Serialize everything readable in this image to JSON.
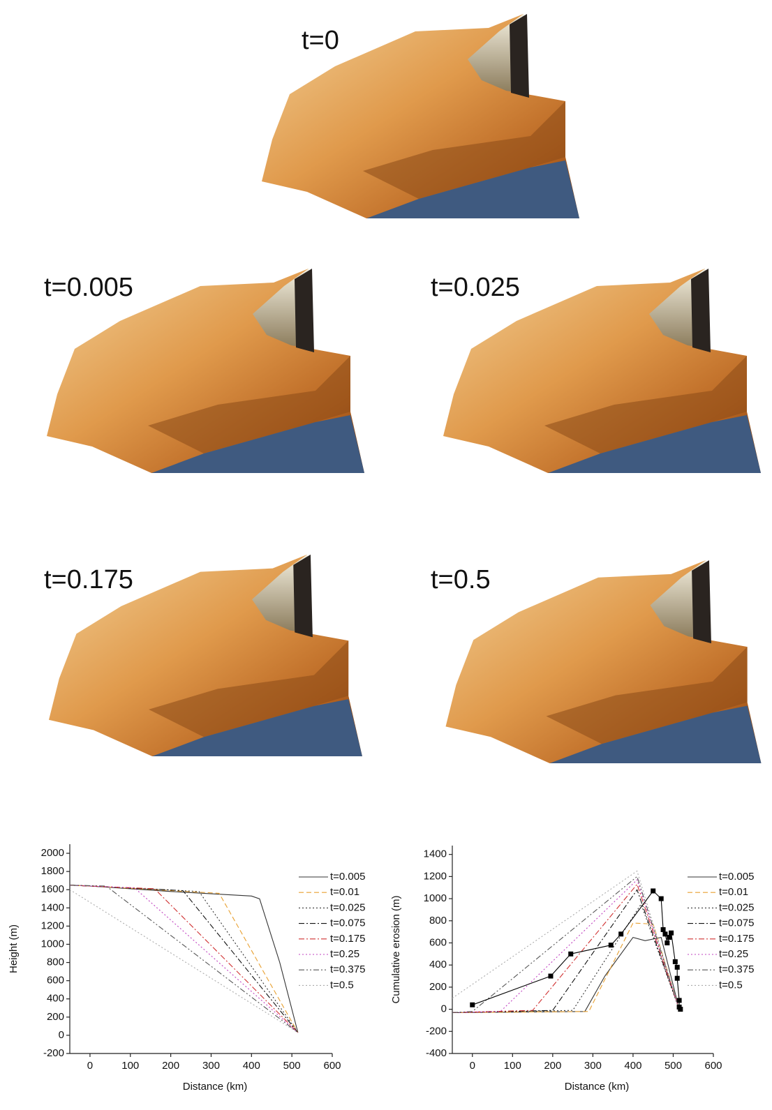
{
  "panels": [
    {
      "label": "t=0"
    },
    {
      "label": "t=0.005"
    },
    {
      "label": "t=0.025"
    },
    {
      "label": "t=0.175"
    },
    {
      "label": "t=0.5"
    }
  ],
  "chart_data": [
    {
      "type": "line",
      "xlabel": "Distance (km)",
      "ylabel": "Height (m)",
      "xlim": [
        -50,
        600
      ],
      "xticks": [
        0,
        100,
        200,
        300,
        400,
        500,
        600
      ],
      "ylim": [
        -200,
        2100
      ],
      "yticks": [
        -200,
        0,
        200,
        400,
        600,
        800,
        1000,
        1200,
        1400,
        1600,
        1800,
        2000
      ],
      "series": [
        {
          "name": "t=0.005",
          "color": "#333333",
          "dash": "none",
          "x": [
            -50,
            0,
            200,
            400,
            420,
            470,
            515
          ],
          "values": [
            1650,
            1640,
            1580,
            1530,
            1500,
            800,
            30
          ]
        },
        {
          "name": "t=0.01",
          "color": "#e8a030",
          "dash": "7 4",
          "x": [
            -50,
            0,
            320,
            515
          ],
          "values": [
            1650,
            1640,
            1560,
            30
          ]
        },
        {
          "name": "t=0.025",
          "color": "#333333",
          "dash": "2 3",
          "x": [
            -50,
            0,
            270,
            515
          ],
          "values": [
            1650,
            1640,
            1580,
            30
          ]
        },
        {
          "name": "t=0.075",
          "color": "#111111",
          "dash": "8 3 2 3",
          "x": [
            -50,
            0,
            230,
            515
          ],
          "values": [
            1650,
            1640,
            1590,
            30
          ]
        },
        {
          "name": "t=0.175",
          "color": "#d03030",
          "dash": "8 3 2 3",
          "x": [
            -50,
            0,
            160,
            515
          ],
          "values": [
            1650,
            1640,
            1610,
            30
          ]
        },
        {
          "name": "t=0.25",
          "color": "#c040c0",
          "dash": "2 3",
          "x": [
            -50,
            0,
            110,
            515
          ],
          "values": [
            1650,
            1640,
            1620,
            30
          ]
        },
        {
          "name": "t=0.375",
          "color": "#555555",
          "dash": "8 3 2 3 2 3",
          "x": [
            -50,
            40,
            515
          ],
          "values": [
            1650,
            1640,
            30
          ]
        },
        {
          "name": "t=0.5",
          "color": "#aaaaaa",
          "dash": "2 3",
          "x": [
            -50,
            515
          ],
          "values": [
            1600,
            30
          ]
        }
      ]
    },
    {
      "type": "line",
      "xlabel": "Distance (km)",
      "ylabel": "Cumulative erosion (m)",
      "xlim": [
        -50,
        600
      ],
      "xticks": [
        0,
        100,
        200,
        300,
        400,
        500,
        600
      ],
      "ylim": [
        -400,
        1480
      ],
      "yticks": [
        -400,
        -200,
        0,
        200,
        400,
        600,
        800,
        1000,
        1200,
        1400
      ],
      "series": [
        {
          "name": "t=0.005",
          "color": "#333333",
          "dash": "none",
          "x": [
            -50,
            280,
            330,
            400,
            430,
            470,
            515
          ],
          "values": [
            -30,
            -20,
            300,
            650,
            620,
            650,
            0
          ]
        },
        {
          "name": "t=0.01",
          "color": "#e8a030",
          "dash": "7 4",
          "x": [
            -50,
            290,
            400,
            450,
            515
          ],
          "values": [
            -30,
            -20,
            780,
            770,
            0
          ]
        },
        {
          "name": "t=0.025",
          "color": "#333333",
          "dash": "2 3",
          "x": [
            -50,
            250,
            420,
            515
          ],
          "values": [
            -30,
            -10,
            950,
            0
          ]
        },
        {
          "name": "t=0.075",
          "color": "#111111",
          "dash": "8 3 2 3",
          "x": [
            -50,
            200,
            410,
            515
          ],
          "values": [
            -30,
            -10,
            1080,
            0
          ]
        },
        {
          "name": "t=0.175",
          "color": "#d03030",
          "dash": "8 3 2 3",
          "x": [
            -50,
            150,
            410,
            515
          ],
          "values": [
            -30,
            -10,
            1130,
            0
          ]
        },
        {
          "name": "t=0.25",
          "color": "#c040c0",
          "dash": "2 3",
          "x": [
            -50,
            70,
            410,
            515
          ],
          "values": [
            -30,
            -20,
            1170,
            0
          ]
        },
        {
          "name": "t=0.375",
          "color": "#555555",
          "dash": "8 3 2 3 2 3",
          "x": [
            -50,
            0,
            410,
            515
          ],
          "values": [
            -30,
            -20,
            1200,
            0
          ]
        },
        {
          "name": "t=0.5",
          "color": "#aaaaaa",
          "dash": "2 3",
          "x": [
            -50,
            410,
            515
          ],
          "values": [
            100,
            1250,
            0
          ]
        },
        {
          "color": "#000000",
          "marker": "square",
          "x": [
            0,
            195,
            245,
            345,
            370,
            450,
            470,
            475,
            480,
            485,
            490,
            495,
            505,
            510,
            510,
            515,
            515,
            518
          ],
          "values": [
            40,
            300,
            500,
            580,
            680,
            1070,
            1000,
            720,
            680,
            600,
            650,
            690,
            430,
            380,
            280,
            80,
            20,
            0
          ]
        }
      ]
    }
  ]
}
